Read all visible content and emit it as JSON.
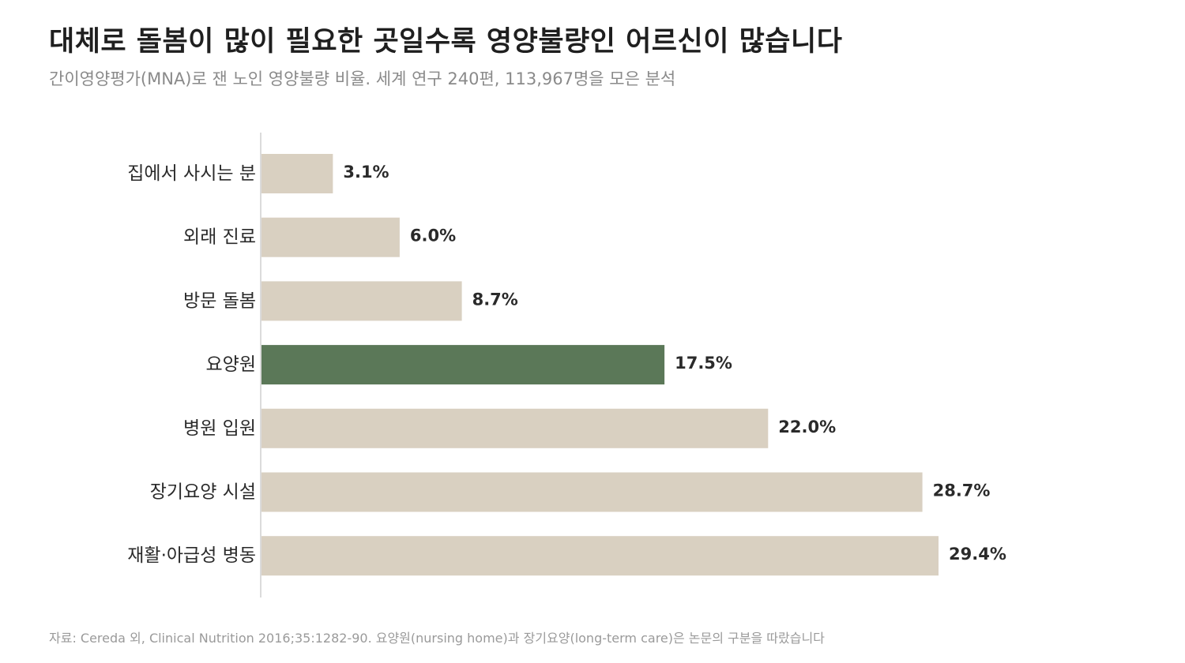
{
  "header": {
    "title": "대체로 돌봄이 많이 필요한 곳일수록 영양불량인 어르신이 많습니다",
    "subtitle": "간이영양평가(MNA)로 잰 노인 영양불량 비율. 세계 연구 240편, 113,967명을 모은 분석"
  },
  "footer": {
    "source": "자료: Cereda 외, Clinical Nutrition 2016;35:1282-90. 요양원(nursing home)과 장기요양(long-term care)은 논문의 구분을 따랐습니다"
  },
  "chart_data": {
    "type": "bar",
    "orientation": "horizontal",
    "categories": [
      "집에서 사시는 분",
      "외래 진료",
      "방문 돌봄",
      "요양원",
      "병원 입원",
      "장기요양 시설",
      "재활·아급성 병동"
    ],
    "values": [
      3.1,
      6.0,
      8.7,
      17.5,
      22.0,
      28.7,
      29.4
    ],
    "value_labels": [
      "3.1%",
      "6.0%",
      "8.7%",
      "17.5%",
      "22.0%",
      "28.7%",
      "29.4%"
    ],
    "unit": "%",
    "highlight_category": "요양원",
    "xlim": [
      0,
      30
    ],
    "grid": false,
    "legend": "none",
    "colors": {
      "bar": "#d9d0c1",
      "highlight": "#5b7858",
      "axis": "#cfcfcf"
    }
  }
}
